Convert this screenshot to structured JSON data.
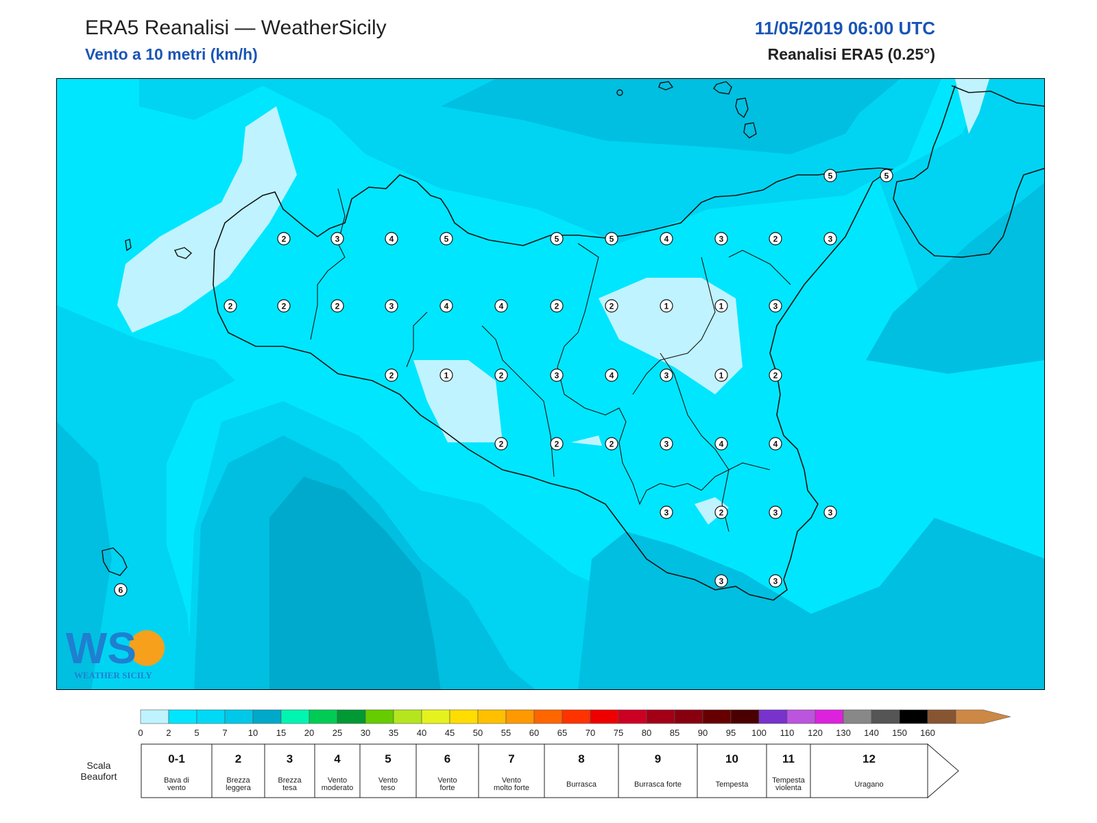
{
  "header": {
    "title": "ERA5 Reanalisi — WeatherSicily",
    "subtitle": "Vento a 10 metri (km/h)",
    "datetime": "11/05/2019 06:00 UTC",
    "source": "Reanalisi ERA5 (0.25°)"
  },
  "logo": {
    "icon": "weather-sicily-logo",
    "text": "WEATHER SICILY"
  },
  "colors": {
    "c0": "#bff3ff",
    "c1": "#00e6ff",
    "c2": "#00d4f2",
    "c3": "#00bfe0",
    "c4": "#00aacc",
    "c5": "#0099b8",
    "coast": "#111111"
  },
  "beaufort_values": [
    {
      "value": "2"
    },
    {
      "value": "3"
    },
    {
      "value": "4"
    },
    {
      "value": "5"
    },
    {
      "value": "5"
    },
    {
      "value": "5"
    },
    {
      "value": "4"
    },
    {
      "value": "3"
    },
    {
      "value": "2"
    },
    {
      "value": "3"
    },
    {
      "value": "2"
    },
    {
      "value": "2"
    },
    {
      "value": "2"
    },
    {
      "value": "3"
    },
    {
      "value": "4"
    },
    {
      "value": "4"
    },
    {
      "value": "2"
    },
    {
      "value": "2"
    },
    {
      "value": "1"
    },
    {
      "value": "1"
    },
    {
      "value": "3"
    },
    {
      "value": "2"
    },
    {
      "value": "1"
    },
    {
      "value": "2"
    },
    {
      "value": "3"
    },
    {
      "value": "4"
    },
    {
      "value": "3"
    },
    {
      "value": "1"
    },
    {
      "value": "2"
    },
    {
      "value": "2"
    },
    {
      "value": "2"
    },
    {
      "value": "2"
    },
    {
      "value": "3"
    },
    {
      "value": "4"
    },
    {
      "value": "4"
    },
    {
      "value": "3"
    },
    {
      "value": "2"
    },
    {
      "value": "3"
    },
    {
      "value": "3"
    },
    {
      "value": "3"
    },
    {
      "value": "3"
    },
    {
      "value": "5"
    },
    {
      "value": "5"
    },
    {
      "value": "6"
    }
  ],
  "colorbar": {
    "ticks": [
      "0",
      "2",
      "5",
      "7",
      "10",
      "15",
      "20",
      "25",
      "30",
      "35",
      "40",
      "45",
      "50",
      "55",
      "60",
      "65",
      "70",
      "75",
      "80",
      "85",
      "90",
      "95",
      "100",
      "110",
      "120",
      "130",
      "140",
      "150",
      "160"
    ],
    "colors": [
      "#bff3ff",
      "#00e6ff",
      "#00d9f5",
      "#00c8e8",
      "#00a9c9",
      "#00f5b0",
      "#00cc55",
      "#009933",
      "#66cc00",
      "#b5e61d",
      "#e6f21d",
      "#ffdd00",
      "#ffc000",
      "#ff9900",
      "#ff6600",
      "#ff3300",
      "#ee0000",
      "#cc0022",
      "#a30018",
      "#880010",
      "#660000",
      "#4a0000",
      "#7733cc",
      "#bb55dd",
      "#dd22dd",
      "#888888",
      "#555555",
      "#000000",
      "#885533",
      "#cc8844"
    ]
  },
  "beaufort_scale": {
    "label": "Scala Beaufort",
    "classes": [
      {
        "num": "0-1",
        "desc": "Bava di vento"
      },
      {
        "num": "2",
        "desc": "Brezza leggera"
      },
      {
        "num": "3",
        "desc": "Brezza tesa"
      },
      {
        "num": "4",
        "desc": "Vento moderato"
      },
      {
        "num": "5",
        "desc": "Vento teso"
      },
      {
        "num": "6",
        "desc": "Vento forte"
      },
      {
        "num": "7",
        "desc": "Vento molto forte"
      },
      {
        "num": "8",
        "desc": "Burrasca"
      },
      {
        "num": "9",
        "desc": "Burrasca forte"
      },
      {
        "num": "10",
        "desc": "Tempesta"
      },
      {
        "num": "11",
        "desc": "Tempesta violenta"
      },
      {
        "num": "12",
        "desc": "Uragano"
      }
    ]
  }
}
